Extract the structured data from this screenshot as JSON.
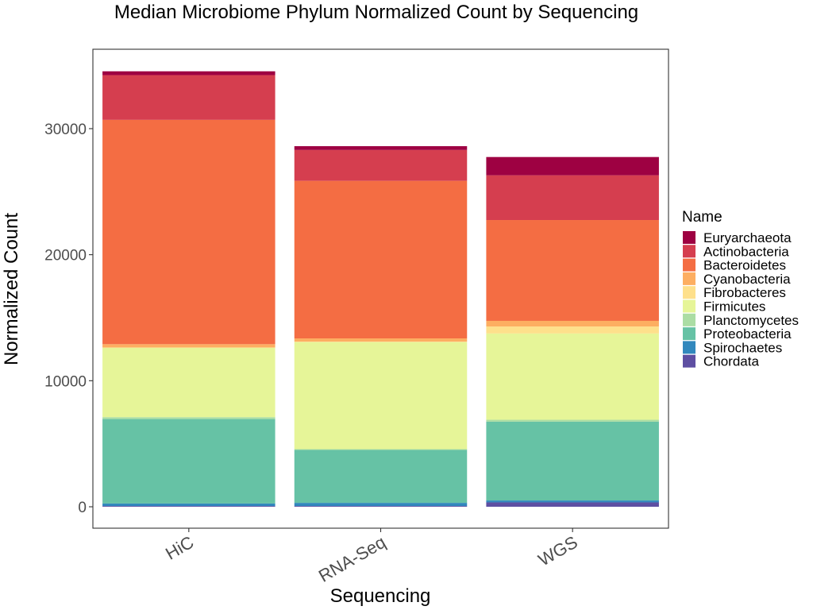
{
  "chart_data": {
    "type": "bar",
    "stacked": true,
    "title": "Median Microbiome Phylum Normalized Count by Sequencing",
    "xlabel": "Sequencing",
    "ylabel": "Normalized Count",
    "categories": [
      "HiC",
      "RNA-Seq",
      "WGS"
    ],
    "ylim": [
      -1700,
      36300
    ],
    "yticks": [
      0,
      10000,
      20000,
      30000
    ],
    "grid": false,
    "legend_title": "Name",
    "legend_position": "right",
    "series": [
      {
        "name": "Chordata",
        "color": "#5e4fa2",
        "values": [
          60,
          60,
          350
        ]
      },
      {
        "name": "Spirochaetes",
        "color": "#3288bd",
        "values": [
          200,
          250,
          150
        ]
      },
      {
        "name": "Proteobacteria",
        "color": "#66c2a5",
        "values": [
          6700,
          4200,
          6250
        ]
      },
      {
        "name": "Planctomycetes",
        "color": "#abdda4",
        "values": [
          150,
          60,
          150
        ]
      },
      {
        "name": "Firmicutes",
        "color": "#e6f598",
        "values": [
          5500,
          8500,
          6850
        ]
      },
      {
        "name": "Fibrobacteres",
        "color": "#fee08b",
        "values": [
          30,
          30,
          550
        ]
      },
      {
        "name": "Cyanobacteria",
        "color": "#fdae61",
        "values": [
          260,
          260,
          450
        ]
      },
      {
        "name": "Bacteroidetes",
        "color": "#f46d43",
        "values": [
          17800,
          12500,
          8000
        ]
      },
      {
        "name": "Actinobacteria",
        "color": "#d53e4f",
        "values": [
          3550,
          2450,
          3550
        ]
      },
      {
        "name": "Euryarchaeota",
        "color": "#9e0142",
        "values": [
          300,
          300,
          1450
        ]
      }
    ],
    "legend_order": [
      "Euryarchaeota",
      "Actinobacteria",
      "Bacteroidetes",
      "Cyanobacteria",
      "Fibrobacteres",
      "Firmicutes",
      "Planctomycetes",
      "Proteobacteria",
      "Spirochaetes",
      "Chordata"
    ]
  }
}
